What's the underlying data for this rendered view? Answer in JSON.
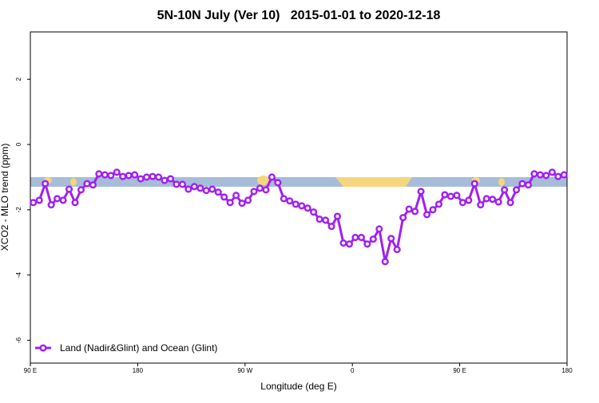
{
  "chart_data": {
    "type": "line",
    "title": "5N-10N July (Ver 10)   2015-01-01 to 2020-12-18",
    "x_label": "Longitude (deg E)",
    "y_label": "XCO2 - MLO trend (ppm)",
    "xlim": [
      90,
      540
    ],
    "ylim": [
      -6.7,
      3.45
    ],
    "xticks": [
      {
        "value": 90,
        "label": "90 E"
      },
      {
        "value": 180,
        "label": "180"
      },
      {
        "value": 270,
        "label": "90 W"
      },
      {
        "value": 360,
        "label": "0"
      },
      {
        "value": 450,
        "label": "90 E"
      },
      {
        "value": 540,
        "label": "180"
      }
    ],
    "yticks": [
      -6,
      -4,
      -2,
      0,
      2
    ],
    "legend": "bottom-left",
    "x": [
      92.5,
      97.5,
      102.5,
      107.5,
      112.5,
      117.5,
      122.5,
      127.5,
      132.5,
      137.5,
      142.5,
      147.5,
      152.5,
      157.5,
      162.5,
      167.5,
      172.5,
      177.5,
      182.5,
      187.5,
      192.5,
      197.5,
      202.5,
      207.5,
      212.5,
      217.5,
      222.5,
      227.5,
      232.5,
      237.5,
      242.5,
      247.5,
      252.5,
      257.5,
      262.5,
      267.5,
      272.5,
      277.5,
      282.5,
      287.5,
      292.5,
      297.5,
      302.5,
      307.5,
      312.5,
      317.5,
      322.5,
      327.5,
      332.5,
      337.5,
      342.5,
      347.5,
      352.5,
      357.5,
      362.5,
      367.5,
      372.5,
      377.5,
      382.5,
      387.5,
      392.5,
      397.5,
      402.5,
      407.5,
      412.5,
      417.5,
      422.5,
      427.5,
      432.5,
      437.5,
      442.5,
      447.5,
      452.5,
      457.5,
      462.5,
      467.5,
      472.5,
      477.5,
      482.5,
      487.5,
      492.5,
      497.5,
      502.5,
      507.5,
      512.5,
      517.5,
      522.5,
      527.5,
      532.5,
      537.5
    ],
    "series": [
      {
        "name": "Land (Nadir&Glint) and Ocean (Glint)",
        "color": "#a020f0",
        "values": [
          -1.78,
          -1.71,
          -1.2,
          -1.85,
          -1.66,
          -1.71,
          -1.37,
          -1.78,
          -1.39,
          -1.2,
          -1.24,
          -0.9,
          -0.93,
          -0.95,
          -0.85,
          -0.98,
          -0.95,
          -0.93,
          -1.05,
          -1.0,
          -0.98,
          -1.0,
          -1.1,
          -1.05,
          -1.22,
          -1.22,
          -1.37,
          -1.29,
          -1.34,
          -1.41,
          -1.37,
          -1.46,
          -1.61,
          -1.78,
          -1.56,
          -1.8,
          -1.71,
          -1.44,
          -1.34,
          -1.39,
          -1.0,
          -1.17,
          -1.66,
          -1.73,
          -1.83,
          -1.88,
          -1.95,
          -2.07,
          -2.29,
          -2.32,
          -2.51,
          -2.2,
          -3.02,
          -3.05,
          -2.85,
          -2.85,
          -3.05,
          -2.9,
          -2.59,
          -3.59,
          -2.88,
          -3.22,
          -2.24,
          -1.98,
          -2.05,
          -1.44,
          -2.15,
          -2.0,
          -1.83,
          -1.54,
          -1.59,
          -1.56,
          -1.78,
          -1.71,
          -1.2,
          -1.85,
          -1.66,
          -1.68,
          -1.76,
          -1.39,
          -1.78,
          -1.39,
          -1.2,
          -1.24,
          -0.9,
          -0.93,
          -0.95,
          -0.85,
          -0.98,
          -0.93
        ]
      }
    ]
  }
}
